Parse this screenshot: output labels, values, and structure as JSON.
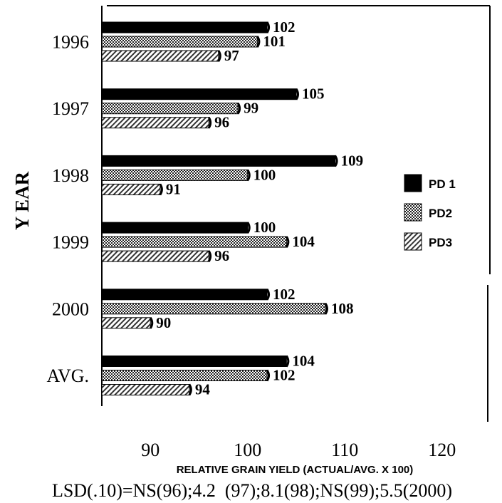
{
  "chart_data": {
    "type": "bar",
    "orientation": "horizontal",
    "categories": [
      "1996",
      "1997",
      "1998",
      "1999",
      "2000",
      "AVG."
    ],
    "series": [
      {
        "name": "PD 1",
        "values": [
          102,
          105,
          109,
          100,
          102,
          104
        ]
      },
      {
        "name": "PD2",
        "values": [
          101,
          99,
          100,
          104,
          108,
          102
        ]
      },
      {
        "name": "PD3",
        "values": [
          97,
          96,
          91,
          96,
          90,
          94
        ]
      }
    ],
    "xlabel": "RELATIVE GRAIN YIELD (ACTUAL/AVG. X 100)",
    "ylabel": "Y EAR",
    "xlim": [
      85,
      125
    ],
    "xticks": [
      "90",
      "100",
      "110",
      "120"
    ],
    "legend_position": "right",
    "note": "LSD(.10)=NS(96);4.2  (97);8.1(98);NS(99);5.5(2000)",
    "colors": {
      "PD 1": "#000000",
      "PD2": "#8a8a8a",
      "PD3": "#cfcfcf"
    }
  }
}
